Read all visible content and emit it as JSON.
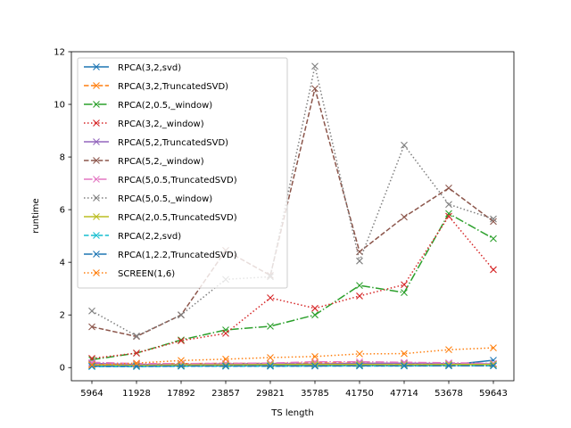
{
  "chart_data": {
    "type": "line",
    "xlabel": "TS length",
    "ylabel": "runtime",
    "categories": [
      "5964",
      "11928",
      "17892",
      "23857",
      "29821",
      "35785",
      "41750",
      "47714",
      "53678",
      "59643"
    ],
    "ylim": [
      -0.5,
      12
    ],
    "yticks": [
      0,
      2,
      4,
      6,
      8,
      10,
      12
    ],
    "grid": false,
    "legend_position": "upper-left",
    "series": [
      {
        "name": "RPCA(3,2,svd)",
        "color": "#1f77b4",
        "dash": "solid",
        "values": [
          0.05,
          0.05,
          0.07,
          0.07,
          0.08,
          0.08,
          0.1,
          0.08,
          0.1,
          0.28
        ]
      },
      {
        "name": "RPCA(3,2,TruncatedSVD)",
        "color": "#ff7f0e",
        "dash": "dashed",
        "values": [
          0.14,
          0.12,
          0.15,
          0.16,
          0.16,
          0.17,
          0.17,
          0.15,
          0.15,
          0.13
        ]
      },
      {
        "name": "RPCA(2,0.5,_window)",
        "color": "#2ca02c",
        "dash": "dashdot",
        "values": [
          0.3,
          0.55,
          1.05,
          1.43,
          1.57,
          2.0,
          3.12,
          2.85,
          5.85,
          4.9
        ]
      },
      {
        "name": "RPCA(3,2,_window)",
        "color": "#d62728",
        "dash": "dotted",
        "values": [
          0.35,
          0.55,
          1.02,
          1.3,
          2.65,
          2.25,
          2.72,
          3.15,
          5.75,
          3.72
        ]
      },
      {
        "name": "RPCA(5,2,TruncatedSVD)",
        "color": "#9467bd",
        "dash": "solid",
        "values": [
          0.16,
          0.12,
          0.12,
          0.14,
          0.15,
          0.14,
          0.16,
          0.17,
          0.15,
          0.14
        ]
      },
      {
        "name": "RPCA(5,2,_window)",
        "color": "#8c564b",
        "dash": "dashed",
        "values": [
          1.55,
          1.18,
          2.0,
          4.45,
          3.5,
          10.6,
          4.4,
          5.72,
          6.82,
          5.55
        ]
      },
      {
        "name": "RPCA(5,0.5,TruncatedSVD)",
        "color": "#e377c2",
        "dash": "dashdot",
        "values": [
          0.2,
          0.15,
          0.15,
          0.16,
          0.17,
          0.22,
          0.22,
          0.2,
          0.18,
          0.16
        ]
      },
      {
        "name": "RPCA(5,0.5,_window)",
        "color": "#7f7f7f",
        "dash": "dotted",
        "values": [
          2.15,
          1.2,
          2.0,
          3.35,
          3.45,
          11.45,
          4.05,
          8.45,
          6.2,
          5.65
        ]
      },
      {
        "name": "RPCA(2,0.5,TruncatedSVD)",
        "color": "#bcbd22",
        "dash": "solid",
        "values": [
          0.1,
          0.08,
          0.1,
          0.1,
          0.12,
          0.12,
          0.12,
          0.11,
          0.12,
          0.12
        ]
      },
      {
        "name": "RPCA(2,2,svd)",
        "color": "#17becf",
        "dash": "dashed",
        "values": [
          0.04,
          0.04,
          0.05,
          0.05,
          0.05,
          0.06,
          0.06,
          0.06,
          0.07,
          0.07
        ]
      },
      {
        "name": "RPCA(1,2.2,TruncatedSVD)",
        "color": "#1f77b4",
        "dash": "dashdot",
        "values": [
          0.05,
          0.05,
          0.06,
          0.06,
          0.06,
          0.06,
          0.07,
          0.07,
          0.07,
          0.07
        ]
      },
      {
        "name": "SCREEN(1,6)",
        "color": "#ff7f0e",
        "dash": "dotted",
        "values": [
          0.1,
          0.17,
          0.27,
          0.32,
          0.38,
          0.42,
          0.52,
          0.53,
          0.68,
          0.75
        ]
      }
    ]
  }
}
